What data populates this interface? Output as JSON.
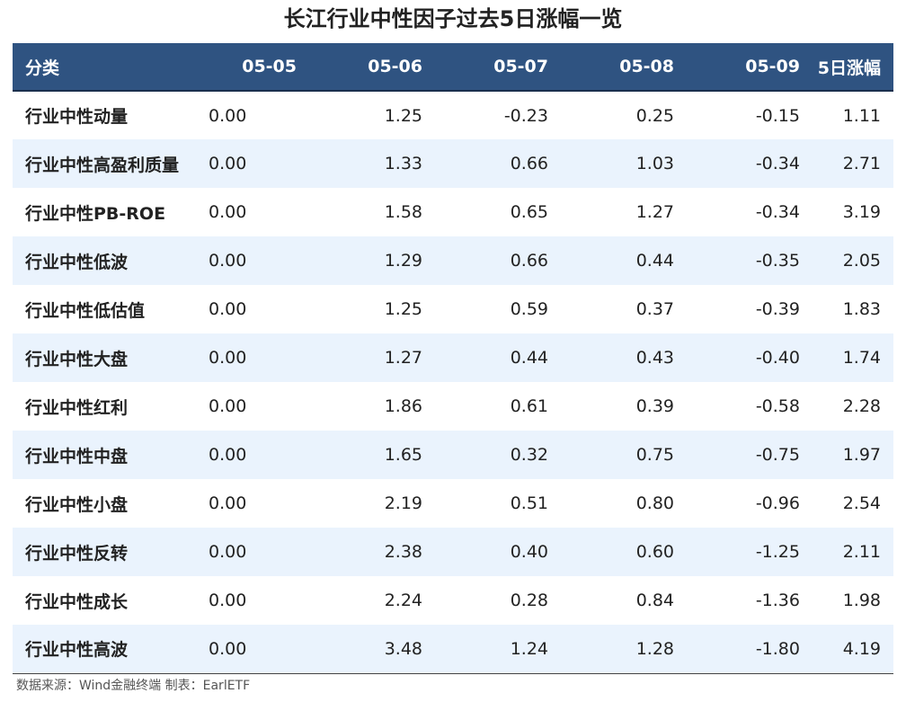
{
  "title": "长江行业中性因子过去5日涨幅一览",
  "columns": [
    "分类",
    "05-05",
    "05-06",
    "05-07",
    "05-08",
    "05-09",
    "5日涨幅"
  ],
  "rows": [
    [
      "行业中性动量",
      "0.00",
      "1.25",
      "-0.23",
      "0.25",
      "-0.15",
      "1.11"
    ],
    [
      "行业中性高盈利质量",
      "0.00",
      "1.33",
      "0.66",
      "1.03",
      "-0.34",
      "2.71"
    ],
    [
      "行业中性PB-ROE",
      "0.00",
      "1.58",
      "0.65",
      "1.27",
      "-0.34",
      "3.19"
    ],
    [
      "行业中性低波",
      "0.00",
      "1.29",
      "0.66",
      "0.44",
      "-0.35",
      "2.05"
    ],
    [
      "行业中性低估值",
      "0.00",
      "1.25",
      "0.59",
      "0.37",
      "-0.39",
      "1.83"
    ],
    [
      "行业中性大盘",
      "0.00",
      "1.27",
      "0.44",
      "0.43",
      "-0.40",
      "1.74"
    ],
    [
      "行业中性红利",
      "0.00",
      "1.86",
      "0.61",
      "0.39",
      "-0.58",
      "2.28"
    ],
    [
      "行业中性中盘",
      "0.00",
      "1.65",
      "0.32",
      "0.75",
      "-0.75",
      "1.97"
    ],
    [
      "行业中性小盘",
      "0.00",
      "2.19",
      "0.51",
      "0.80",
      "-0.96",
      "2.54"
    ],
    [
      "行业中性反转",
      "0.00",
      "2.38",
      "0.40",
      "0.60",
      "-1.25",
      "2.11"
    ],
    [
      "行业中性成长",
      "0.00",
      "2.24",
      "0.28",
      "0.84",
      "-1.36",
      "1.98"
    ],
    [
      "行业中性高波",
      "0.00",
      "3.48",
      "1.24",
      "1.28",
      "-1.80",
      "4.19"
    ]
  ],
  "source": "数据来源：Wind金融终端 制表：EarlETF",
  "colors": {
    "header_bg": "#2f5381",
    "stripe_bg": "#eaf3fd"
  }
}
